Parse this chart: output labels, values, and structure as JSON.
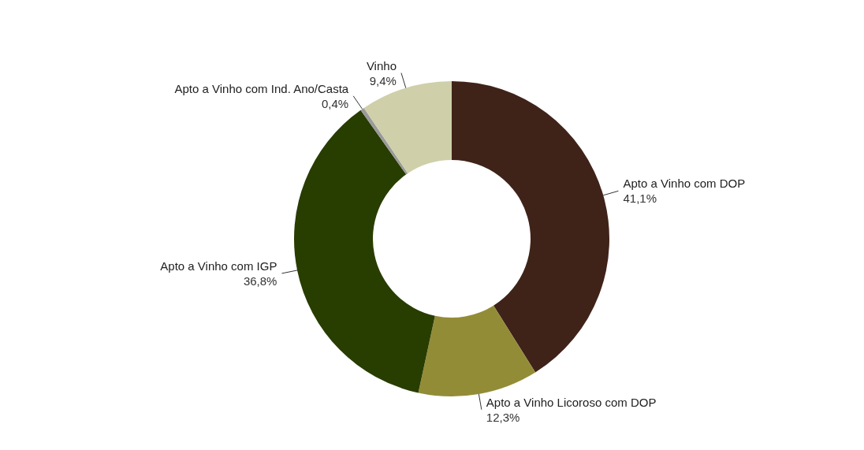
{
  "chart_data": {
    "type": "donut",
    "categories": [
      "Apto a Vinho com DOP",
      "Apto a Vinho Licoroso com DOP",
      "Apto a Vinho com IGP",
      "Apto a Vinho com Ind. Ano/Casta",
      "Vinho"
    ],
    "values": [
      41.1,
      12.3,
      36.8,
      0.4,
      9.4
    ],
    "colors": [
      "#3f2319",
      "#938c37",
      "#283d00",
      "#9a9a9a",
      "#cfcfaa"
    ],
    "value_labels": [
      "41,1%",
      "12,3%",
      "36,8%",
      "0,4%",
      "9,4%"
    ],
    "legend": false
  }
}
